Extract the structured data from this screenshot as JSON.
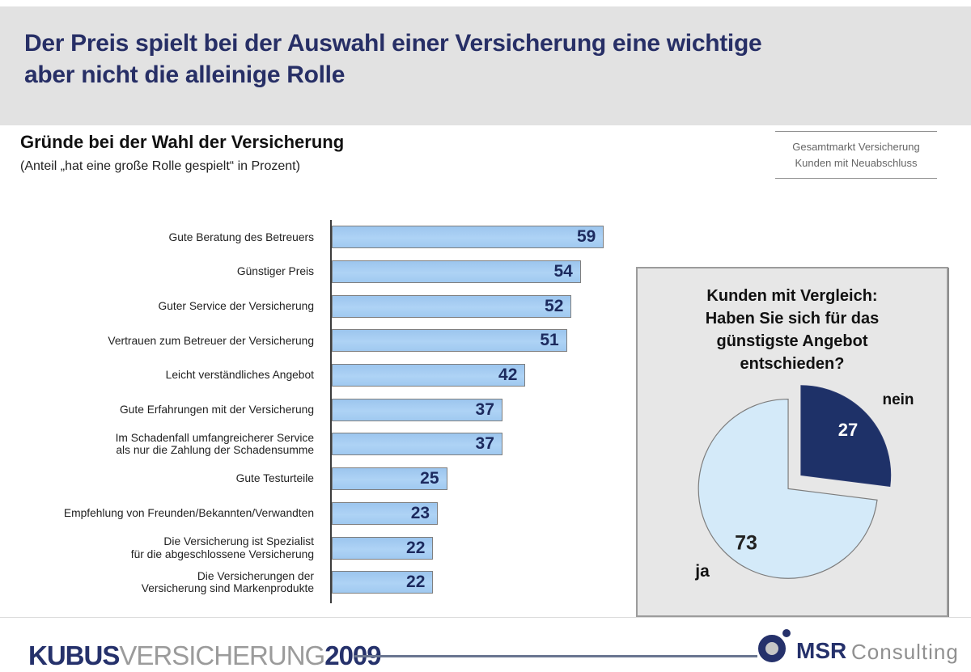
{
  "header": {
    "title": "Der Preis spielt bei der Auswahl einer Versicherung eine wichtige\naber nicht die alleinige Rolle"
  },
  "section": {
    "heading": "Gründe bei der Wahl der Versicherung",
    "subheading": "(Anteil „hat eine große Rolle gespielt“ in Prozent)",
    "scope_note": "Gesamtmarkt Versicherung\nKunden mit Neuabschluss"
  },
  "chart_data": [
    {
      "type": "bar",
      "orientation": "horizontal",
      "title": "Gründe bei der Wahl der Versicherung",
      "unit": "Prozent",
      "value_label_position": "inside-end",
      "xlim": [
        0,
        62
      ],
      "bar_color": "#a6ccf1",
      "categories": [
        "Gute Beratung des Betreuers",
        "Günstiger Preis",
        "Guter Service der Versicherung",
        "Vertrauen zum Betreuer der Versicherung",
        "Leicht verständliches Angebot",
        "Gute Erfahrungen mit der Versicherung",
        "Im Schadenfall umfangreicherer Service\nals nur die Zahlung der Schadensumme",
        "Gute Testurteile",
        "Empfehlung von Freunden/Bekannten/Verwandten",
        "Die Versicherung ist Spezialist\nfür die abgeschlossene Versicherung",
        "Die Versicherungen der\nVersicherung sind Markenprodukte"
      ],
      "values": [
        59,
        54,
        52,
        51,
        42,
        37,
        37,
        25,
        23,
        22,
        22
      ]
    },
    {
      "type": "pie",
      "title": "Kunden mit Vergleich:\nHaben Sie sich für das\ngünstigste Angebot\nentschieden?",
      "labels": [
        "ja",
        "nein"
      ],
      "values": [
        73,
        27
      ],
      "colors": [
        "#d4eaf9",
        "#1e3168"
      ],
      "exploded_slice": "nein",
      "legend_position": "none"
    }
  ],
  "footer": {
    "brand_bold1": "KUBUS",
    "brand_light": "VERSICHERUNG",
    "brand_bold2": "2009",
    "logo_bold": "MSR",
    "logo_light": "Consulting"
  },
  "colors": {
    "title_navy": "#272f66",
    "value_navy": "#1c2a5e",
    "header_band": "#e2e2e2",
    "panel_gray": "#e7e7e7",
    "bar_blue": "#a6ccf1",
    "pie_light_blue": "#d4eaf9",
    "pie_dark_navy": "#1e3168"
  }
}
